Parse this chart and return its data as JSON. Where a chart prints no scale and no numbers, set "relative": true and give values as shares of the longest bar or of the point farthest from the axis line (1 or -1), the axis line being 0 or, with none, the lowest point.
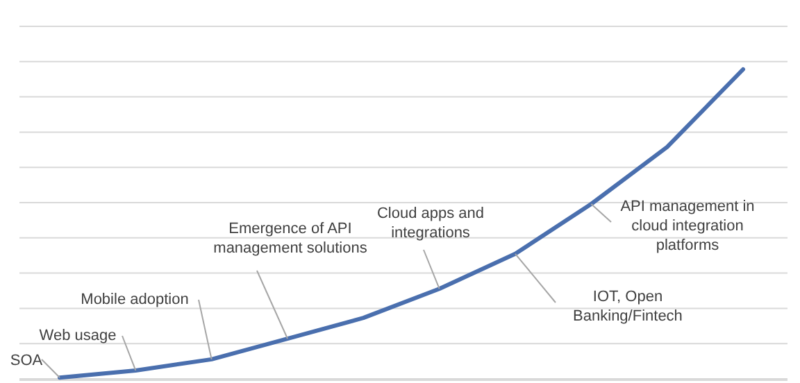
{
  "chart_data": {
    "type": "line",
    "relative": true,
    "grid": "y",
    "categories": [
      null,
      null,
      null,
      null,
      null,
      null,
      null,
      null,
      null,
      null
    ],
    "series": [
      {
        "color": "#4a6fae",
        "values": [
          0.004,
          0.027,
          0.063,
          0.13,
          0.197,
          0.291,
          0.404,
          0.565,
          0.749,
          1
        ]
      }
    ],
    "annotations": [
      "SOA",
      "Web usage",
      "Mobile adoption",
      "Emergence of API management solutions",
      "Cloud apps and integrations",
      "IOT, Open Banking/Fintech",
      "API management in cloud integration platforms"
    ]
  }
}
